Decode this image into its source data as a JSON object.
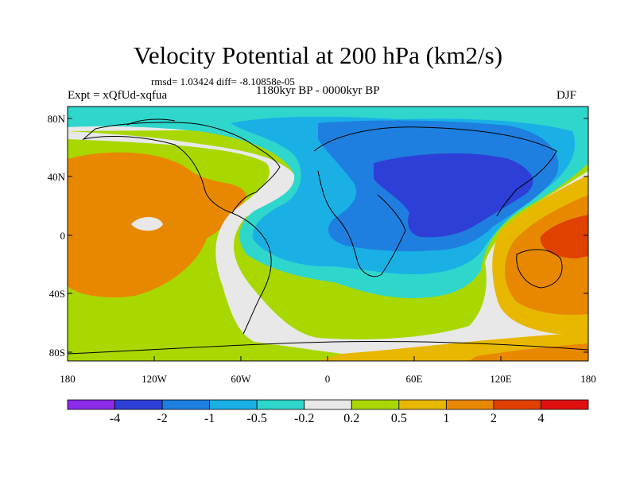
{
  "title": "Velocity Potential at 200 hPa (km2/s)",
  "stats": "rmsd= 1.03424 diff= -8.10858e-05",
  "experiment": "Expt = xQfUd-xqfua",
  "period": "1180kyr BP - 0000kyr BP",
  "season": "DJF",
  "axes": {
    "y_ticks": [
      "80N",
      "40N",
      "0",
      "40S",
      "80S"
    ],
    "x_ticks": [
      "180",
      "120W",
      "60W",
      "0",
      "60E",
      "120E",
      "180"
    ]
  },
  "colorbar": {
    "colors": [
      "#8b2be8",
      "#2e3fd8",
      "#1e7fe0",
      "#1ab0e6",
      "#2fd6cc",
      "#e8e8e8",
      "#a8d800",
      "#e8b800",
      "#e88800",
      "#e04000",
      "#e01010"
    ],
    "labels": [
      "-4",
      "-2",
      "-1",
      "-0.5",
      "-0.2",
      "0.2",
      "0.5",
      "1",
      "2",
      "4"
    ]
  },
  "colors": {
    "orange": "#e88800",
    "green": "#a8d800",
    "gray": "#e8e8e8",
    "cyan": "#2fd6cc",
    "lightblue": "#1ab0e6",
    "blue": "#1e7fe0",
    "darkblue": "#2e3fd8",
    "redorange": "#e04000",
    "yellow": "#e8b800"
  }
}
